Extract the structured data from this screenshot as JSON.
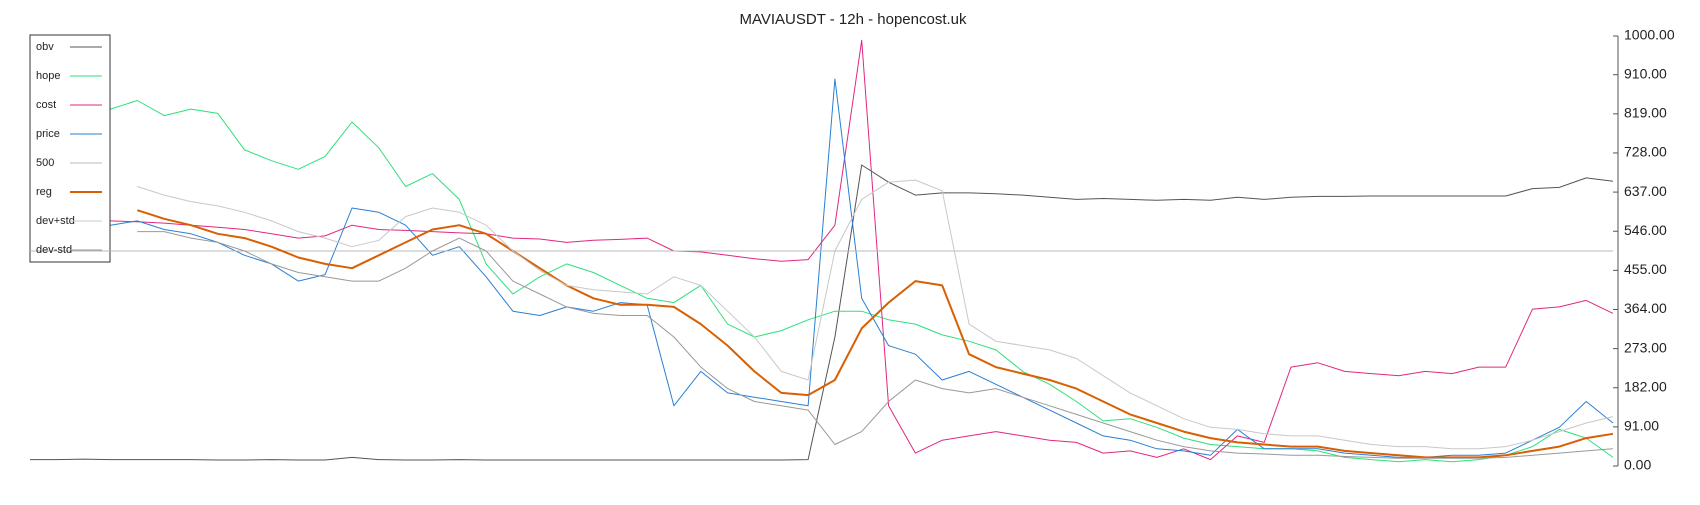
{
  "chart_data": {
    "type": "line",
    "title": "MAVIAUSDT - 12h - hopencost.uk",
    "ylim": [
      0,
      1000
    ],
    "yticks": [
      {
        "value": 0,
        "label": "0.00"
      },
      {
        "value": 91,
        "label": "91.00"
      },
      {
        "value": 182,
        "label": "182.00"
      },
      {
        "value": 273,
        "label": "273.00"
      },
      {
        "value": 364,
        "label": "364.00"
      },
      {
        "value": 455,
        "label": "455.00"
      },
      {
        "value": 546,
        "label": "546.00"
      },
      {
        "value": 637,
        "label": "637.00"
      },
      {
        "value": 728,
        "label": "728.00"
      },
      {
        "value": 819,
        "label": "819.00"
      },
      {
        "value": 910,
        "label": "910.00"
      },
      {
        "value": 1000,
        "label": "1000.00"
      }
    ],
    "y_axis_side": "right",
    "legend": "upper left",
    "series": [
      {
        "name": "obv",
        "color": "#555555",
        "values": [
          15,
          15,
          16,
          15,
          15,
          15,
          15,
          14,
          14,
          15,
          14,
          14,
          20,
          15,
          14,
          14,
          15,
          14,
          14,
          14,
          14,
          14,
          14,
          14,
          14,
          14,
          14,
          14,
          14,
          15,
          300,
          700,
          660,
          630,
          635,
          635,
          633,
          630,
          625,
          620,
          622,
          620,
          618,
          620,
          618,
          625,
          620,
          625,
          627,
          627,
          628,
          628,
          628,
          628,
          628,
          628,
          645,
          648,
          670,
          662
        ]
      },
      {
        "name": "hope",
        "color": "#2ee07a",
        "values": [
          null,
          null,
          null,
          830,
          850,
          815,
          830,
          820,
          735,
          710,
          690,
          720,
          800,
          740,
          650,
          680,
          620,
          470,
          400,
          440,
          470,
          450,
          420,
          390,
          380,
          420,
          330,
          300,
          315,
          340,
          360,
          360,
          340,
          330,
          305,
          290,
          270,
          220,
          190,
          150,
          105,
          110,
          90,
          65,
          50,
          45,
          40,
          40,
          35,
          20,
          15,
          10,
          15,
          10,
          15,
          25,
          45,
          85,
          65,
          20
        ]
      },
      {
        "name": "cost",
        "color": "#e0287f",
        "values": [
          null,
          null,
          null,
          570,
          568,
          565,
          560,
          555,
          550,
          540,
          530,
          535,
          560,
          550,
          548,
          545,
          542,
          540,
          530,
          528,
          520,
          525,
          527,
          530,
          500,
          498,
          490,
          482,
          476,
          480,
          560,
          990,
          140,
          30,
          60,
          70,
          80,
          70,
          60,
          55,
          30,
          35,
          20,
          40,
          15,
          70,
          55,
          230,
          240,
          220,
          215,
          210,
          220,
          215,
          230,
          230,
          365,
          370,
          385,
          355
        ]
      },
      {
        "name": "price",
        "color": "#2a7fd4",
        "values": [
          null,
          null,
          null,
          560,
          570,
          550,
          540,
          520,
          490,
          470,
          430,
          445,
          600,
          590,
          560,
          490,
          510,
          440,
          360,
          350,
          370,
          360,
          380,
          375,
          140,
          220,
          170,
          160,
          150,
          140,
          900,
          390,
          280,
          260,
          200,
          220,
          190,
          160,
          130,
          100,
          70,
          60,
          40,
          35,
          25,
          85,
          40,
          40,
          40,
          30,
          25,
          20,
          20,
          25,
          25,
          30,
          60,
          90,
          150,
          100
        ]
      },
      {
        "name": "500",
        "color": "#bbbbbb",
        "values": [
          500,
          500,
          500,
          500,
          500,
          500,
          500,
          500,
          500,
          500,
          500,
          500,
          500,
          500,
          500,
          500,
          500,
          500,
          500,
          500,
          500,
          500,
          500,
          500,
          500,
          500,
          500,
          500,
          500,
          500,
          500,
          500,
          500,
          500,
          500,
          500,
          500,
          500,
          500,
          500,
          500,
          500,
          500,
          500,
          500,
          500,
          500,
          500,
          500,
          500,
          500,
          500,
          500,
          500,
          500,
          500,
          500,
          500,
          500,
          500
        ]
      },
      {
        "name": "reg",
        "color": "#d95f02",
        "width": 2,
        "values": [
          null,
          null,
          null,
          null,
          595,
          575,
          560,
          540,
          530,
          510,
          485,
          470,
          460,
          490,
          520,
          550,
          560,
          540,
          500,
          460,
          420,
          390,
          375,
          375,
          370,
          330,
          280,
          220,
          170,
          165,
          200,
          320,
          380,
          430,
          420,
          260,
          230,
          215,
          200,
          180,
          150,
          120,
          100,
          80,
          65,
          55,
          50,
          45,
          45,
          35,
          30,
          25,
          20,
          20,
          20,
          25,
          35,
          45,
          65,
          75
        ]
      },
      {
        "name": "dev+std",
        "color": "#c8c8c8",
        "values": [
          null,
          null,
          null,
          null,
          650,
          630,
          615,
          605,
          590,
          570,
          545,
          530,
          510,
          525,
          580,
          600,
          590,
          560,
          500,
          455,
          420,
          410,
          405,
          400,
          440,
          420,
          360,
          300,
          220,
          200,
          500,
          620,
          660,
          665,
          640,
          330,
          290,
          280,
          270,
          250,
          210,
          170,
          140,
          110,
          90,
          85,
          75,
          70,
          70,
          60,
          50,
          45,
          45,
          40,
          40,
          45,
          60,
          80,
          100,
          115
        ]
      },
      {
        "name": "dev-std",
        "color": "#999999",
        "values": [
          null,
          null,
          null,
          null,
          545,
          545,
          530,
          520,
          500,
          470,
          450,
          440,
          430,
          430,
          460,
          500,
          530,
          500,
          430,
          400,
          370,
          355,
          350,
          350,
          300,
          230,
          180,
          150,
          140,
          130,
          50,
          80,
          150,
          200,
          180,
          170,
          180,
          160,
          140,
          120,
          100,
          80,
          60,
          45,
          35,
          30,
          28,
          25,
          25,
          22,
          20,
          18,
          18,
          18,
          18,
          20,
          25,
          30,
          35,
          40
        ]
      }
    ]
  }
}
